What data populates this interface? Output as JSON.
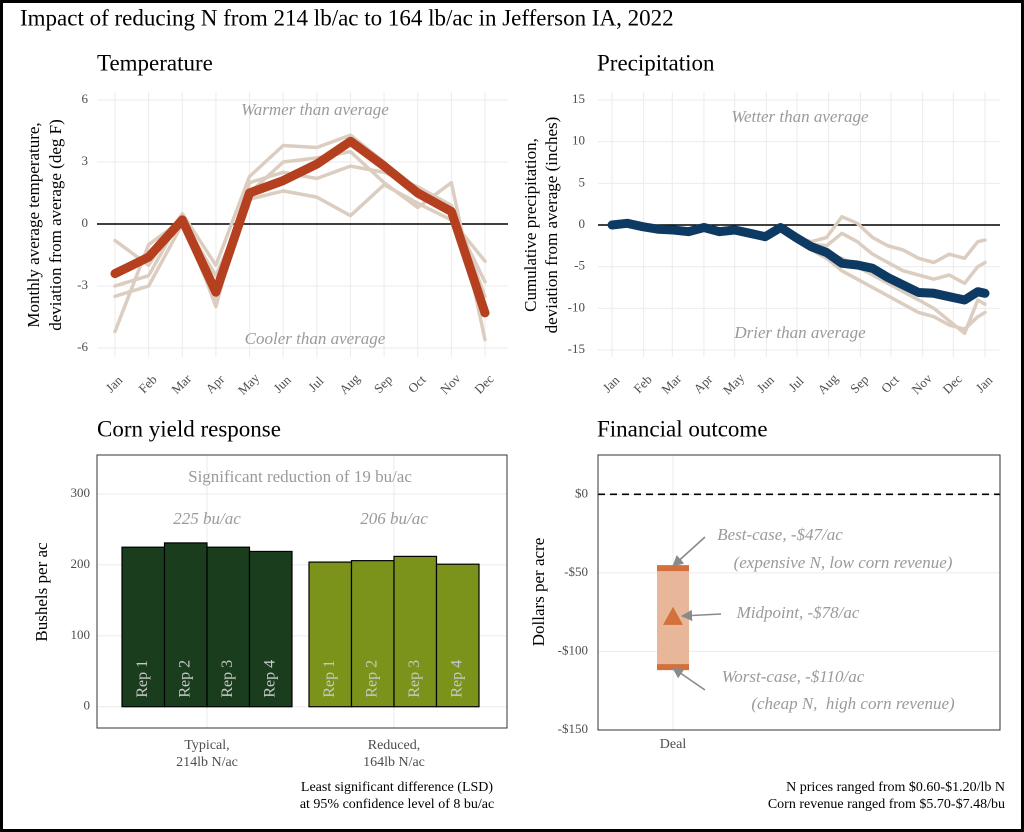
{
  "title": "Impact of reducing N from 214 lb/ac to 164 lb/ac in Jefferson IA, 2022",
  "chart_data": [
    {
      "type": "line",
      "title": "Temperature",
      "ylabel": [
        "Monthly average temperature,",
        "deviation from average (deg F)"
      ],
      "categories": [
        "Jan",
        "Feb",
        "Mar",
        "Apr",
        "May",
        "Jun",
        "Jul",
        "Aug",
        "Sep",
        "Oct",
        "Nov",
        "Dec"
      ],
      "ylim": [
        -6,
        6
      ],
      "yticks": [
        -6,
        -3,
        0,
        3,
        6
      ],
      "hline": 0,
      "grid": true,
      "annotations": [
        "Warmer than average",
        "Cooler than average"
      ],
      "series": [
        {
          "color": "#dccdc1",
          "values": [
            -0.8,
            -2.0,
            0.5,
            -2.0,
            2.3,
            3.8,
            3.7,
            4.3,
            3.0,
            1.4,
            0.5,
            -2.8
          ]
        },
        {
          "color": "#dccdc1",
          "values": [
            -3.5,
            -3.0,
            0,
            -3.8,
            1.5,
            3.0,
            3.2,
            3.5,
            2.0,
            0.8,
            2.0,
            -5.6
          ]
        },
        {
          "color": "#dccdc1",
          "values": [
            -5.2,
            -1.0,
            0.2,
            -2.5,
            1.2,
            1.6,
            1.3,
            0.4,
            1.9,
            1.0,
            0.2,
            -1.8
          ]
        },
        {
          "color": "#dccdc1",
          "values": [
            -3.0,
            -2.5,
            0.4,
            -4.0,
            2.0,
            2.5,
            2.2,
            2.8,
            2.5,
            1.8,
            0.9,
            -3.5
          ]
        },
        {
          "color": "#b5401f",
          "values": [
            -2.4,
            -1.6,
            0.2,
            -3.3,
            1.5,
            2.1,
            2.9,
            4.0,
            2.8,
            1.5,
            0.6,
            -4.3
          ]
        }
      ]
    },
    {
      "type": "line",
      "title": "Precipitation",
      "ylabel": [
        "Cumulative precipitation,",
        "deviation from average (inches)"
      ],
      "x": [
        0,
        15,
        30,
        45,
        60,
        75,
        90,
        105,
        120,
        135,
        150,
        165,
        180,
        195,
        210,
        225,
        240,
        255,
        270,
        285,
        300,
        315,
        330,
        345,
        358,
        365
      ],
      "xlim": [
        0,
        365
      ],
      "xticks": [
        {
          "value": 0,
          "label": "Jan"
        },
        {
          "value": 31,
          "label": "Feb"
        },
        {
          "value": 59,
          "label": "Mar"
        },
        {
          "value": 90,
          "label": "Apr"
        },
        {
          "value": 120,
          "label": "May"
        },
        {
          "value": 151,
          "label": "Jun"
        },
        {
          "value": 181,
          "label": "Jul"
        },
        {
          "value": 212,
          "label": "Aug"
        },
        {
          "value": 243,
          "label": "Sep"
        },
        {
          "value": 273,
          "label": "Oct"
        },
        {
          "value": 304,
          "label": "Nov"
        },
        {
          "value": 334,
          "label": "Dec"
        },
        {
          "value": 365,
          "label": "Jan"
        }
      ],
      "ylim": [
        -15,
        15
      ],
      "yticks": [
        -15,
        -10,
        -5,
        0,
        5,
        10,
        15
      ],
      "hline": 0,
      "grid": true,
      "annotations": [
        "Wetter than average",
        "Drier than average"
      ],
      "series": [
        {
          "color": "#dccdc1",
          "values": [
            0,
            0.2,
            -0.2,
            -0.5,
            -0.6,
            -0.8,
            -0.3,
            -0.8,
            -0.6,
            -1,
            -1.4,
            -0.3,
            -1.5,
            -2.0,
            -1.5,
            1.0,
            0.2,
            -1.5,
            -2.5,
            -3.0,
            -4.0,
            -4.5,
            -3.5,
            -4.0,
            -2.0,
            -1.8
          ]
        },
        {
          "color": "#dccdc1",
          "values": [
            0,
            0.2,
            -0.2,
            -0.5,
            -0.6,
            -0.8,
            -0.3,
            -0.8,
            -0.6,
            -1,
            -1.4,
            -0.3,
            -1.5,
            -2.3,
            -2.5,
            -1.0,
            -2.0,
            -3.5,
            -4.5,
            -5.5,
            -6.0,
            -6.5,
            -6.0,
            -7.0,
            -5.0,
            -4.5
          ]
        },
        {
          "color": "#dccdc1",
          "values": [
            0,
            0.2,
            -0.2,
            -0.5,
            -0.6,
            -0.8,
            -0.3,
            -0.8,
            -0.6,
            -1,
            -1.4,
            -0.3,
            -1.5,
            -3.0,
            -4.0,
            -5.5,
            -6.5,
            -7.5,
            -8.5,
            -9.5,
            -10.5,
            -11.0,
            -12.0,
            -12.5,
            -11.0,
            -10.5
          ]
        },
        {
          "color": "#dccdc1",
          "values": [
            0,
            0.2,
            -0.2,
            -0.5,
            -0.6,
            -0.8,
            -0.3,
            -0.8,
            -0.6,
            -1,
            -1.4,
            -0.3,
            -1.5,
            -2.8,
            -3.5,
            -4.0,
            -5.0,
            -6.0,
            -7.0,
            -8.0,
            -9.0,
            -10.0,
            -11.5,
            -13.0,
            -9.0,
            -9.5
          ]
        },
        {
          "color": "#0d3a63",
          "values": [
            0,
            0.2,
            -0.2,
            -0.5,
            -0.6,
            -0.8,
            -0.3,
            -0.8,
            -0.6,
            -1,
            -1.4,
            -0.3,
            -1.5,
            -2.6,
            -3.3,
            -4.6,
            -4.8,
            -5.2,
            -6.3,
            -7.2,
            -8.1,
            -8.2,
            -8.6,
            -9.0,
            -8.0,
            -8.2
          ]
        }
      ]
    },
    {
      "type": "bar",
      "title": "Corn yield response",
      "ylabel": "Bushels per ac",
      "ylim": [
        -30,
        355
      ],
      "yticks": [
        0,
        100,
        200,
        300
      ],
      "grid": true,
      "annotation": "Significant reduction of 19 bu/ac",
      "series": [
        {
          "name": [
            "Typical,",
            "214lb N/ac"
          ],
          "label": "225 bu/ac",
          "color": "#1a3d1e",
          "categories": [
            "Rep 1",
            "Rep 2",
            "Rep 3",
            "Rep 4"
          ],
          "values": [
            225,
            231,
            225,
            219
          ]
        },
        {
          "name": [
            "Reduced,",
            "164lb N/ac"
          ],
          "label": "206 bu/ac",
          "color": "#7b931b",
          "categories": [
            "Rep 1",
            "Rep 2",
            "Rep 3",
            "Rep 4"
          ],
          "values": [
            204,
            206,
            212,
            201
          ]
        }
      ],
      "note": [
        "Least significant difference (LSD)",
        "at 95% confidence level of 8 bu/ac"
      ]
    },
    {
      "type": "range",
      "title": "Financial outcome",
      "ylabel": "Dollars per acre",
      "categories": [
        "Deal"
      ],
      "low": [
        -110
      ],
      "mid": [
        -78
      ],
      "high": [
        -47
      ],
      "ylim": [
        -150,
        25
      ],
      "yticks": [
        {
          "value": -150,
          "label": "-$150"
        },
        {
          "value": -100,
          "label": "-$100"
        },
        {
          "value": -50,
          "label": "-$50"
        },
        {
          "value": 0,
          "label": "$0"
        }
      ],
      "hline": 0,
      "hline_dashed": true,
      "grid": true,
      "color": "#d4703a",
      "fill": "#e8b79a",
      "annotations": [
        "Best-case, -$47/ac",
        "(expensive N, low corn revenue)",
        "Midpoint, -$78/ac",
        "Worst-case, -$110/ac",
        "(cheap N,  high corn revenue)"
      ],
      "note": [
        "N prices ranged from $0.60-$1.20/lb N",
        "Corn revenue ranged from $5.70-$7.48/bu"
      ]
    }
  ]
}
